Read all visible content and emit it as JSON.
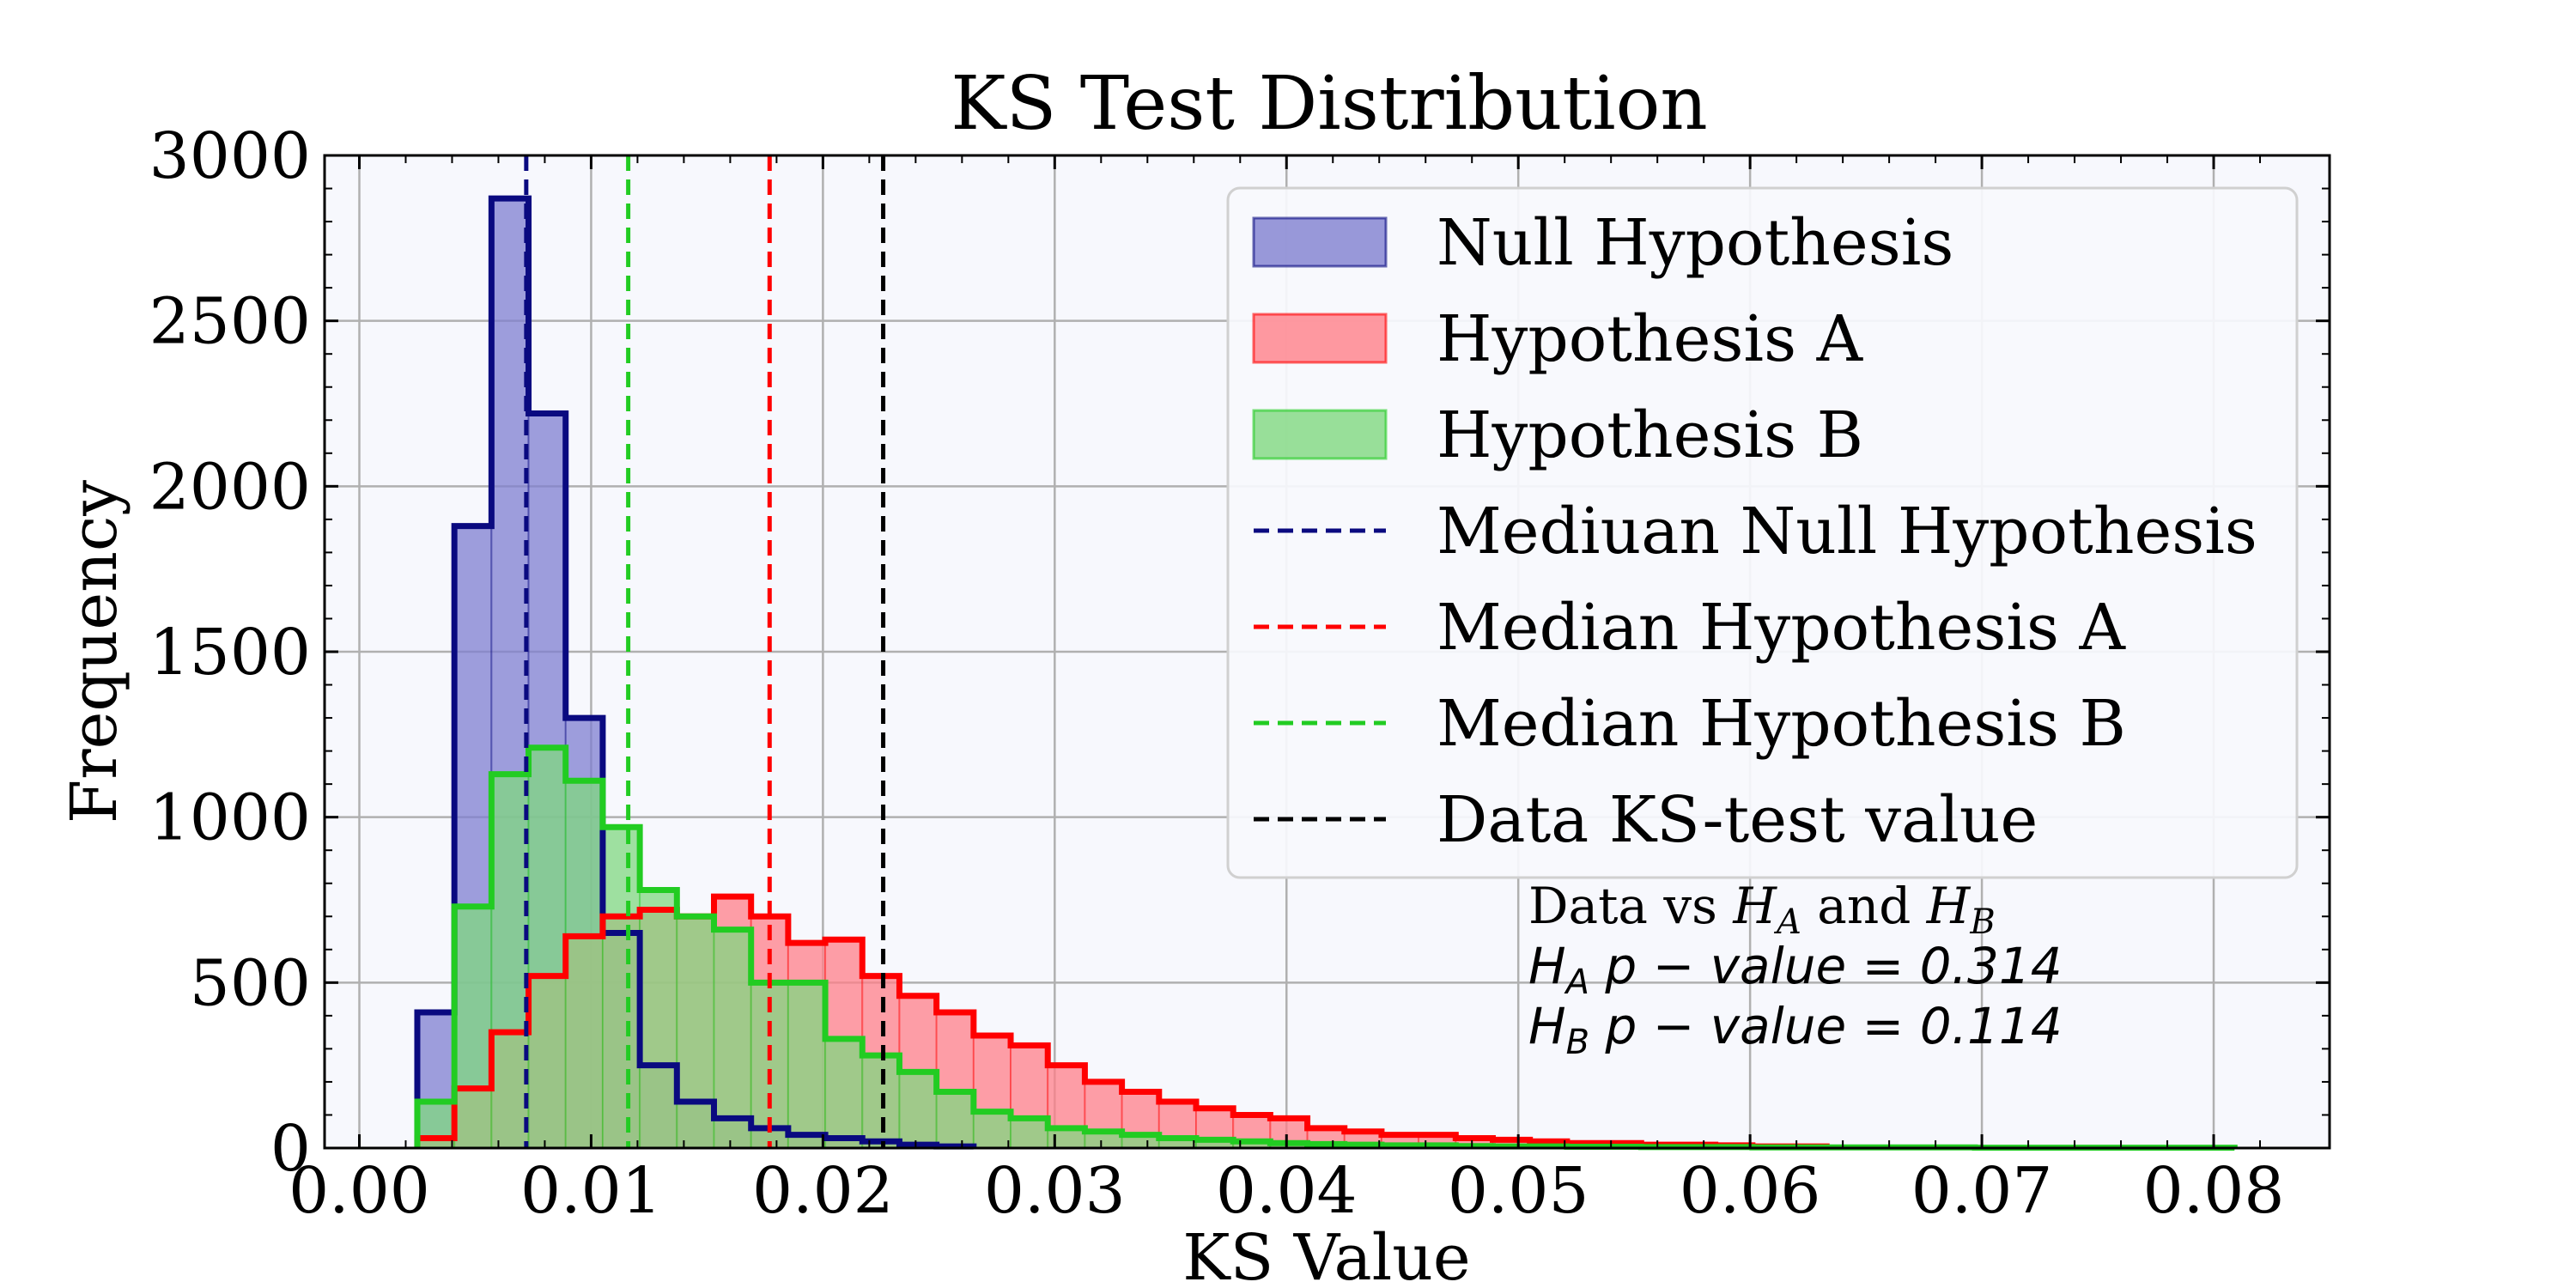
{
  "chart_data": {
    "type": "histogram",
    "title": "KS Test Distribution",
    "xlabel": "KS Value",
    "ylabel": "Frequency",
    "xlim": [
      -0.0015,
      0.085
    ],
    "ylim": [
      0,
      3000
    ],
    "xticks": [
      "0.00",
      "0.01",
      "0.02",
      "0.03",
      "0.04",
      "0.05",
      "0.06",
      "0.07",
      "0.08"
    ],
    "yticks": [
      "0",
      "500",
      "1000",
      "1500",
      "2000",
      "2500",
      "3000"
    ],
    "grid": true,
    "legend_position": "upper right",
    "series": [
      {
        "name": "Null Hypothesis",
        "fill_color": "#7f7fd0",
        "edge_color": "#0a0a80",
        "bin_edges": [
          0.0025,
          0.0041,
          0.0057,
          0.0073,
          0.0089,
          0.0105,
          0.0121,
          0.0137,
          0.0153,
          0.0169,
          0.0185,
          0.0201,
          0.0217,
          0.0233,
          0.0249,
          0.0265
        ],
        "counts": [
          410,
          1880,
          2870,
          2220,
          1300,
          650,
          250,
          140,
          90,
          60,
          40,
          30,
          20,
          10,
          5
        ]
      },
      {
        "name": "Hypothesis A",
        "fill_color": "#ff7f88",
        "edge_color": "#ff0000",
        "bin_edges": [
          0.0025,
          0.0041,
          0.0057,
          0.0073,
          0.0089,
          0.0105,
          0.0121,
          0.0137,
          0.0153,
          0.0169,
          0.0185,
          0.0201,
          0.0217,
          0.0233,
          0.0249,
          0.0265,
          0.0281,
          0.0297,
          0.0313,
          0.0329,
          0.0345,
          0.0361,
          0.0377,
          0.0393,
          0.0409,
          0.0425,
          0.0441,
          0.0457,
          0.0473,
          0.0489,
          0.0505,
          0.0521,
          0.0537,
          0.0553,
          0.0569,
          0.0585,
          0.0601,
          0.0617,
          0.0633
        ],
        "counts": [
          30,
          180,
          350,
          520,
          640,
          700,
          720,
          700,
          760,
          700,
          620,
          630,
          520,
          460,
          410,
          340,
          310,
          250,
          200,
          170,
          140,
          120,
          100,
          90,
          60,
          50,
          40,
          40,
          30,
          25,
          20,
          15,
          15,
          10,
          10,
          8,
          5,
          5
        ]
      },
      {
        "name": "Hypothesis B",
        "fill_color": "#80d880",
        "edge_color": "#22cc22",
        "bin_edges": [
          0.0025,
          0.0041,
          0.0057,
          0.0073,
          0.0089,
          0.0105,
          0.0121,
          0.0137,
          0.0153,
          0.0169,
          0.0185,
          0.0201,
          0.0217,
          0.0233,
          0.0249,
          0.0265,
          0.0281,
          0.0297,
          0.0313,
          0.0329,
          0.0345,
          0.0361,
          0.0377,
          0.0393,
          0.0409,
          0.0425,
          0.0441,
          0.0457,
          0.0473,
          0.0489,
          0.0505,
          0.0521,
          0.0537,
          0.0553,
          0.0569,
          0.0585,
          0.0601,
          0.0617,
          0.0633,
          0.0649,
          0.0665,
          0.0681,
          0.0697,
          0.0713,
          0.0729,
          0.0745,
          0.0761,
          0.0777,
          0.0793,
          0.0809
        ],
        "counts": [
          140,
          730,
          1130,
          1210,
          1110,
          970,
          780,
          700,
          660,
          500,
          500,
          330,
          280,
          230,
          170,
          110,
          90,
          60,
          50,
          40,
          30,
          25,
          20,
          15,
          12,
          10,
          8,
          8,
          6,
          5,
          5,
          4,
          4,
          3,
          3,
          3,
          2,
          2,
          2,
          2,
          2,
          2,
          1,
          1,
          1,
          1,
          1,
          1,
          1
        ]
      }
    ],
    "vlines": [
      {
        "name": "Mediuan Null Hypothesis",
        "x": 0.0072,
        "color": "#0a0a80"
      },
      {
        "name": "Median Hypothesis A",
        "x": 0.0177,
        "color": "#ff0000"
      },
      {
        "name": "Median Hypothesis B",
        "x": 0.0116,
        "color": "#22cc22"
      },
      {
        "name": "Data KS-test value",
        "x": 0.0226,
        "color": "#000000"
      }
    ],
    "annotation": {
      "line1_a": "Data vs ",
      "line1_ha": "H",
      "line1_ha_sub": "A",
      "line1_mid": " and ",
      "line1_hb": "H",
      "line1_hb_sub": "B",
      "line2_h": "H",
      "line2_sub": "A",
      "line2_text": "  p − value = 0.314",
      "line3_h": "H",
      "line3_sub": "B",
      "line3_text": "  p − value = 0.114"
    }
  }
}
